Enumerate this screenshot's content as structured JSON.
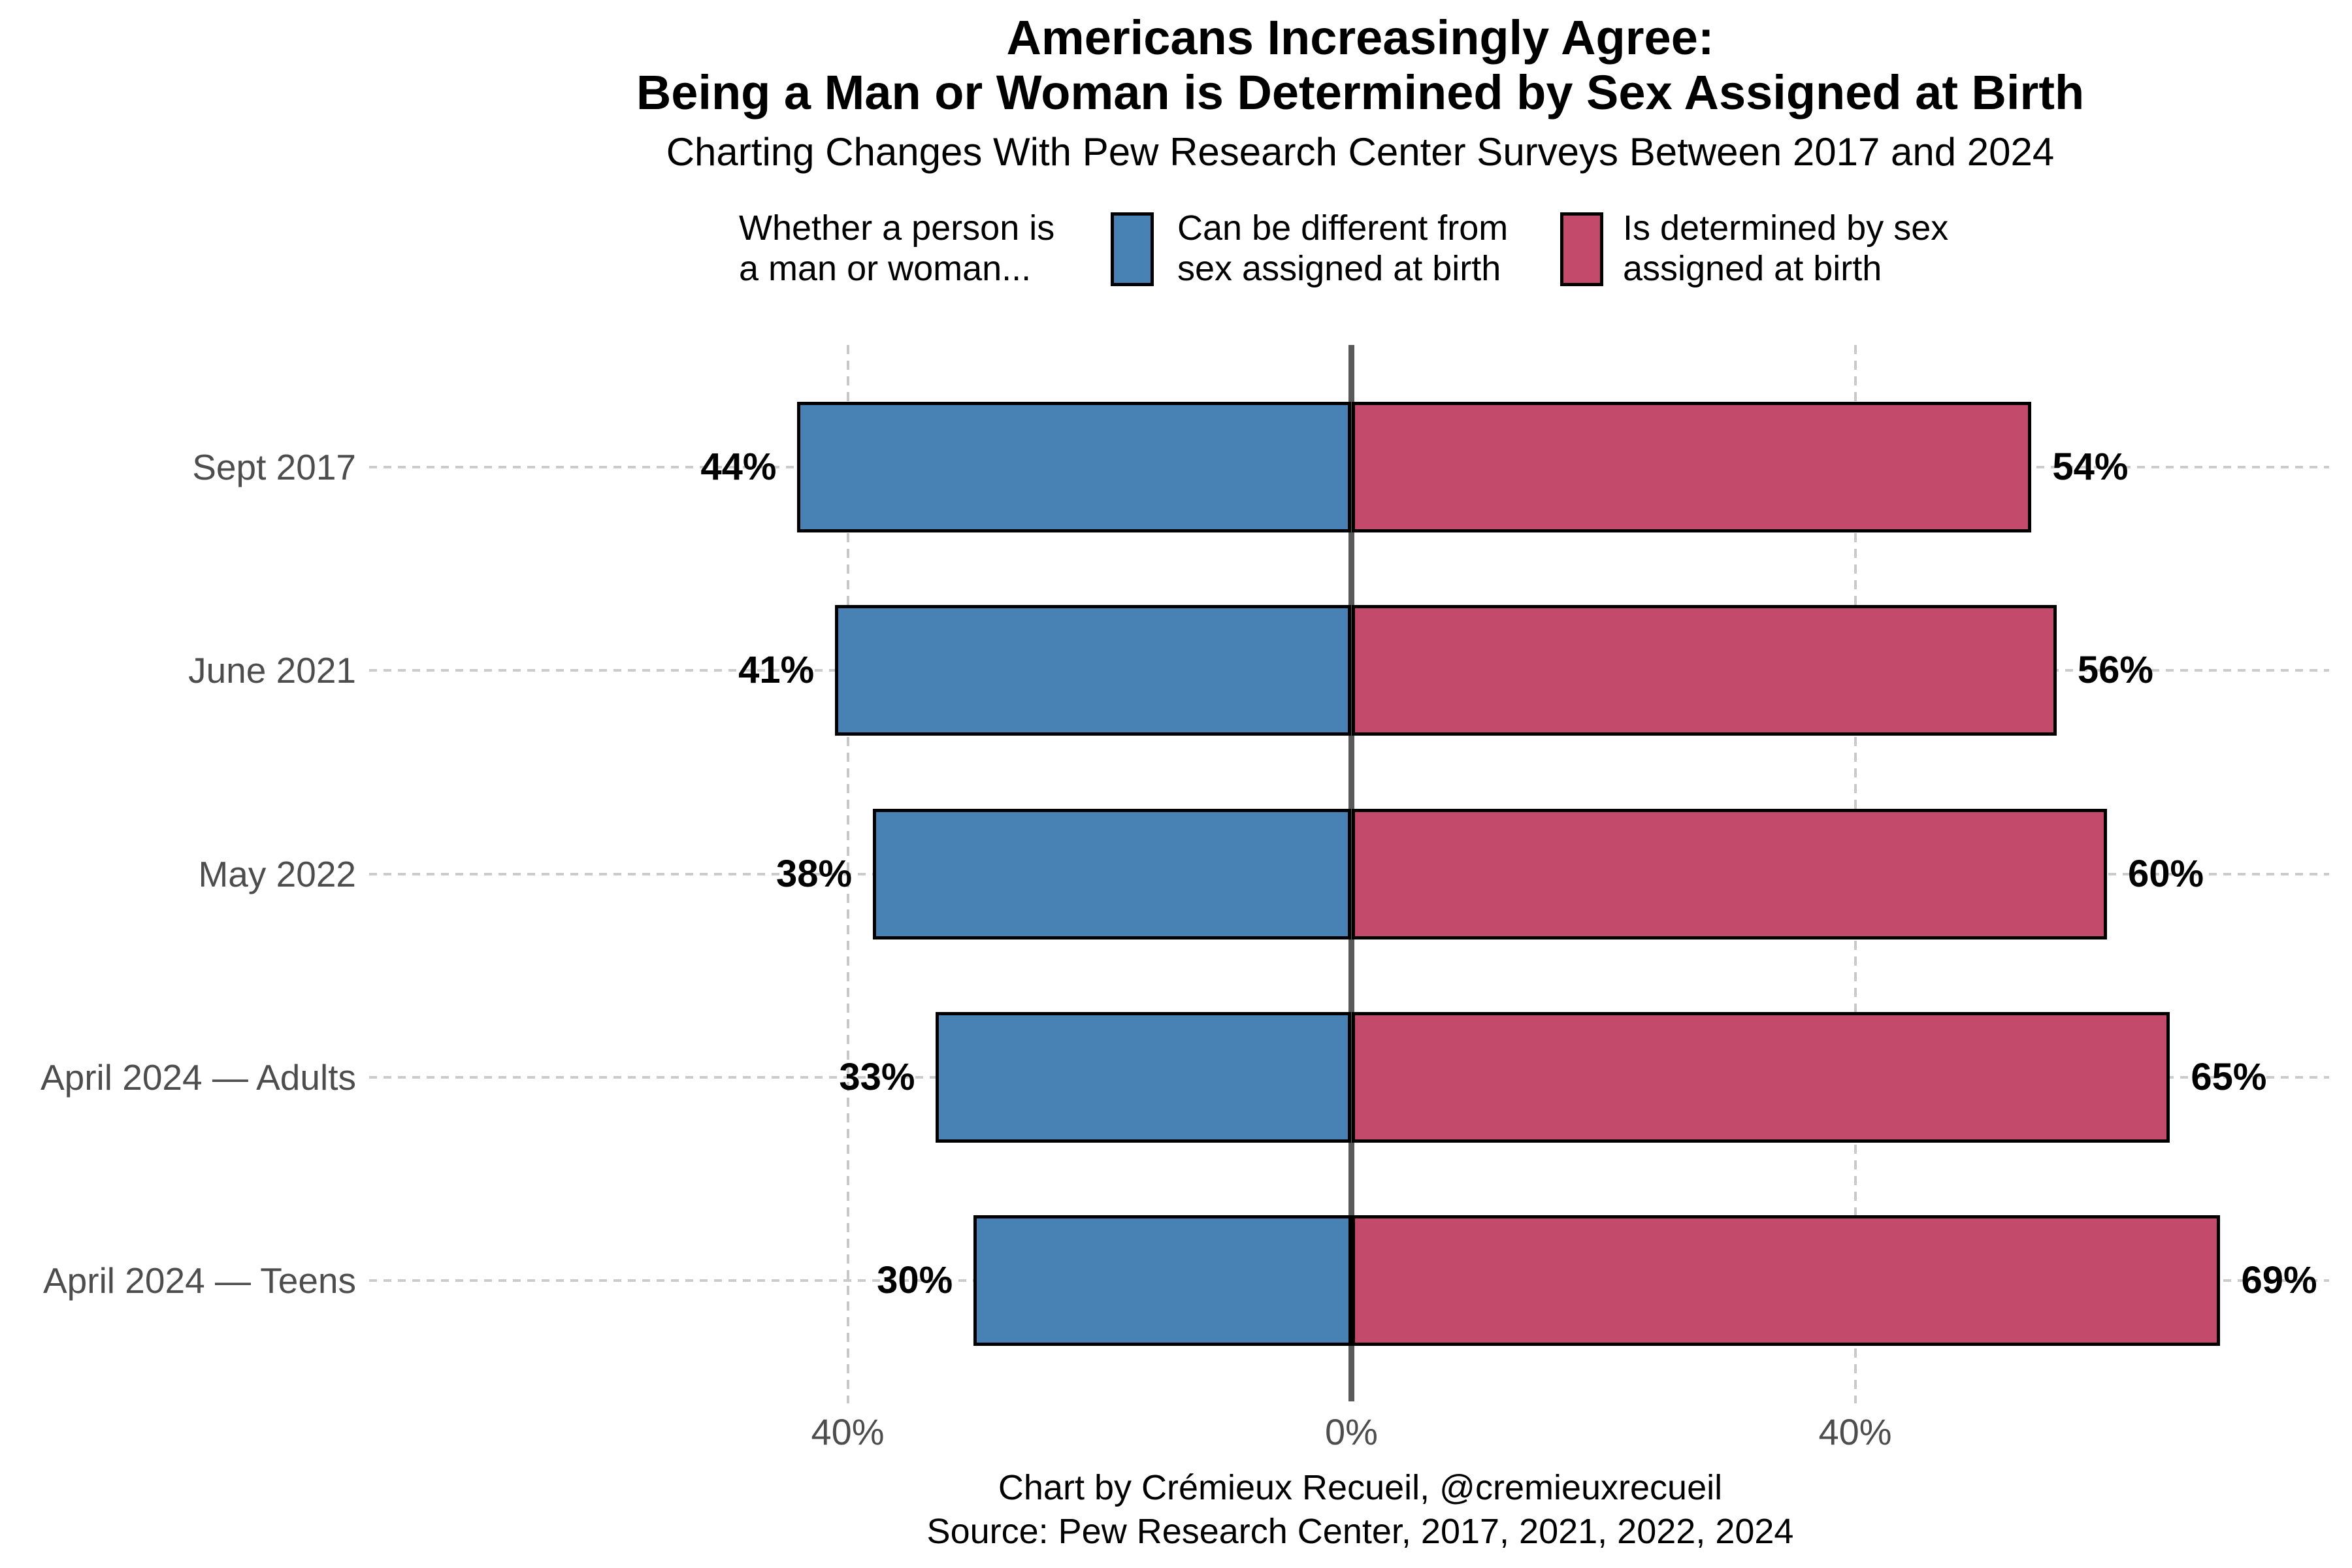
{
  "title": "Americans Increasingly Agree:\nBeing a Man or Woman is Determined by Sex Assigned at Birth",
  "subtitle": "Charting Changes With Pew Research Center Surveys Between 2017 and 2024",
  "legend": {
    "title": "Whether a person is\na man or woman...",
    "items": [
      {
        "label": "Can be different from\nsex assigned at birth",
        "color": "#4881b4"
      },
      {
        "label": "Is determined by sex\nassigned at birth",
        "color": "#c44a6c"
      }
    ]
  },
  "chart_data": {
    "type": "bar",
    "variant": "diverging-horizontal",
    "title": "Americans Increasingly Agree: Being a Man or Woman is Determined by Sex Assigned at Birth",
    "subtitle": "Charting Changes With Pew Research Center Surveys Between 2017 and 2024",
    "categories": [
      "Sept 2017",
      "June 2021",
      "May 2022",
      "April 2024 — Adults",
      "April 2024 — Teens"
    ],
    "series": [
      {
        "name": "Can be different from sex assigned at birth",
        "side": "left",
        "color": "#4881b4",
        "values": [
          44,
          41,
          38,
          33,
          30
        ],
        "labels": [
          "44%",
          "41%",
          "38%",
          "33%",
          "30%"
        ]
      },
      {
        "name": "Is determined by sex assigned at birth",
        "side": "right",
        "color": "#c44a6c",
        "values": [
          54,
          56,
          60,
          65,
          69
        ],
        "labels": [
          "54%",
          "56%",
          "60%",
          "65%",
          "69%"
        ]
      }
    ],
    "x_axis": {
      "ticks": [
        {
          "value": -40,
          "label": "40%"
        },
        {
          "value": 0,
          "label": "0%"
        },
        {
          "value": 40,
          "label": "40%"
        }
      ],
      "range": [
        -47,
        47
      ]
    },
    "grid": {
      "horizontal": "dashed",
      "vertical": "dashed-at-40",
      "zero_line": true
    },
    "legend_position": "top"
  },
  "caption": "Chart by Crémieux Recueil, @cremieuxrecueil\nSource: Pew Research Center, 2017, 2021, 2022, 2024",
  "colors": {
    "blue": "#4881b4",
    "red": "#c44a6c",
    "bar_border": "#000000",
    "zero_line": "#5a5a5a",
    "grid": "#cbcbcb",
    "axis_text": "#4d4d4d",
    "text": "#000000",
    "background": "#ffffff"
  }
}
